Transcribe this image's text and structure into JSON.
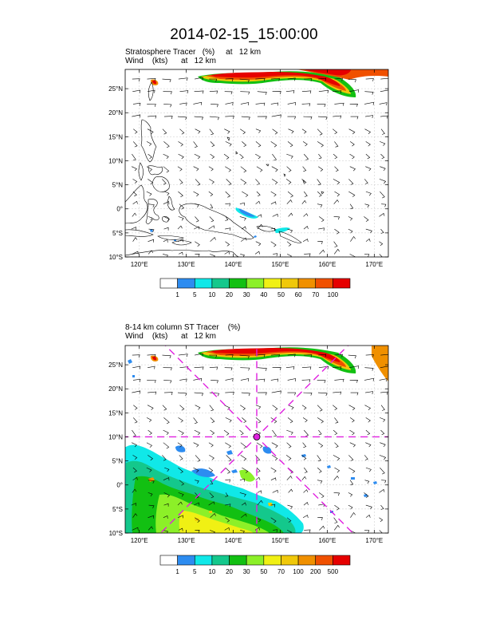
{
  "title": "2014-02-15_15:00:00",
  "panels": [
    {
      "subtitle_line1": "Stratosphere Tracer   (%)     at   12 km",
      "subtitle_line2": "Wind    (kts)      at   12 km",
      "lat_labels": [
        "25°N",
        "20°N",
        "15°N",
        "10°N",
        "5°N",
        "0°",
        "5°S",
        "10°S"
      ],
      "lon_labels": [
        "120°E",
        "130°E",
        "140°E",
        "150°E",
        "160°E",
        "170°E"
      ],
      "colorbar_labels": [
        "1",
        "5",
        "10",
        "20",
        "30",
        "40",
        "50",
        "60",
        "70",
        "100"
      ],
      "colorbar_colors": [
        "#ffffff",
        "#2d8cf0",
        "#10e8e8",
        "#14c88c",
        "#12c012",
        "#8cf028",
        "#f0f014",
        "#f0c80a",
        "#f09000",
        "#f05000",
        "#e60000"
      ]
    },
    {
      "subtitle_line1": "8-14 km column ST Tracer    (%)",
      "subtitle_line2": "Wind    (kts)      at   12 km",
      "lat_labels": [
        "25°N",
        "20°N",
        "15°N",
        "10°N",
        "5°N",
        "0°",
        "5°S",
        "10°S"
      ],
      "lon_labels": [
        "120°E",
        "130°E",
        "140°E",
        "150°E",
        "160°E",
        "170°E"
      ],
      "colorbar_labels": [
        "1",
        "5",
        "10",
        "20",
        "30",
        "50",
        "70",
        "100",
        "200",
        "500"
      ],
      "colorbar_colors": [
        "#ffffff",
        "#2d8cf0",
        "#10e8e8",
        "#14c88c",
        "#12c012",
        "#8cf028",
        "#f0f014",
        "#f0c80a",
        "#f09000",
        "#f05000",
        "#e60000"
      ]
    }
  ],
  "map_extent": {
    "lon": [
      117,
      173
    ],
    "lat": [
      -10,
      29
    ]
  },
  "map_lat_ticks": [
    25,
    20,
    15,
    10,
    5,
    0,
    -5,
    -10
  ],
  "map_lon_ticks": [
    120,
    130,
    140,
    150,
    160,
    170
  ],
  "marker": {
    "lon": 145,
    "lat": 10,
    "color": "#e020e0"
  },
  "grid_color": "#c8c8c8"
}
